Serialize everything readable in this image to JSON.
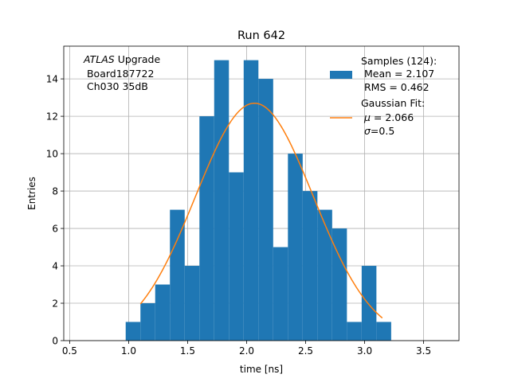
{
  "chart_data": {
    "type": "bar",
    "title": "Run 642",
    "xlabel": "time [ns]",
    "ylabel": "Entries",
    "xlim": [
      0.45,
      3.8
    ],
    "ylim": [
      0,
      15.75
    ],
    "grid": true,
    "x_ticks": [
      0.5,
      1.0,
      1.5,
      2.0,
      2.5,
      3.0,
      3.5
    ],
    "x_tick_labels": [
      "0.5",
      "1.0",
      "1.5",
      "2.0",
      "2.5",
      "3.0",
      "3.5"
    ],
    "y_ticks": [
      0,
      2,
      4,
      6,
      8,
      10,
      12,
      14
    ],
    "y_tick_labels": [
      "0",
      "2",
      "4",
      "6",
      "8",
      "10",
      "12",
      "14"
    ],
    "bin_edges": [
      0.975,
      1.1,
      1.225,
      1.35,
      1.475,
      1.6,
      1.725,
      1.85,
      1.975,
      2.1,
      2.225,
      2.35,
      2.475,
      2.6,
      2.725,
      2.85,
      2.975,
      3.1,
      3.225
    ],
    "bin_counts": [
      1,
      2,
      3,
      7,
      4,
      12,
      15,
      9,
      15,
      14,
      5,
      10,
      8,
      7,
      6,
      1,
      4,
      1
    ],
    "bar_color": "#1f77b4",
    "fit": {
      "mu": 2.066,
      "sigma": 0.5,
      "amplitude": 12.7,
      "x_range": [
        1.1,
        3.15
      ],
      "color": "#ff7f0e"
    },
    "annotation": {
      "italic": "ATLAS",
      "line1_rest": " Upgrade",
      "line2": " Board187722",
      "line3": " Ch030 35dB"
    },
    "legend": {
      "position": "top-right",
      "samples_title": "Samples (124):",
      "samples_mean": " Mean = 2.107",
      "samples_rms": " RMS = 0.462",
      "fit_title": "Gaussian Fit:",
      "fit_mu_symbol": "μ",
      "fit_mu_rest": " = 2.066",
      "fit_sigma_symbol": "σ",
      "fit_sigma_rest": "=0.5"
    }
  }
}
